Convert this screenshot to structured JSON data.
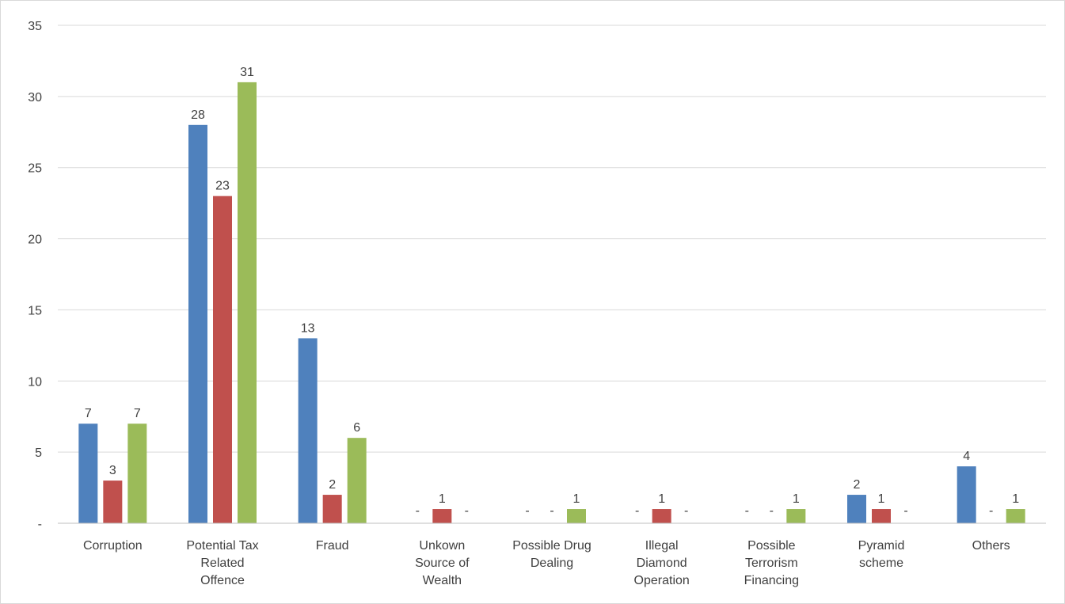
{
  "chart_data": {
    "type": "bar",
    "title": "",
    "xlabel": "",
    "ylabel": "",
    "ylim": [
      0,
      35
    ],
    "y_ticks": [
      0,
      5,
      10,
      15,
      20,
      25,
      30,
      35
    ],
    "y_tick_labels": [
      "-",
      "5",
      "10",
      "15",
      "20",
      "25",
      "30",
      "35"
    ],
    "grid": true,
    "legend": "none",
    "categories": [
      [
        "Corruption"
      ],
      [
        "Potential Tax",
        "Related",
        "Offence"
      ],
      [
        "Fraud"
      ],
      [
        "Unkown",
        "Source of",
        "Wealth"
      ],
      [
        "Possible Drug",
        "Dealing"
      ],
      [
        "Illegal",
        "Diamond",
        "Operation"
      ],
      [
        "Possible",
        "Terrorism",
        "Financing"
      ],
      [
        "Pyramid",
        "scheme"
      ],
      [
        "Others"
      ]
    ],
    "series": [
      {
        "color": "#4f81bd",
        "values": [
          7,
          28,
          13,
          0,
          0,
          0,
          0,
          2,
          4
        ]
      },
      {
        "color": "#c0504d",
        "values": [
          3,
          23,
          2,
          1,
          0,
          1,
          0,
          1,
          0
        ]
      },
      {
        "color": "#9bbb59",
        "values": [
          7,
          31,
          6,
          0,
          1,
          0,
          1,
          0,
          1
        ]
      }
    ],
    "zero_label": "-",
    "gridline_color": "#d9d9d9",
    "axis_color": "#bfbfbf"
  }
}
